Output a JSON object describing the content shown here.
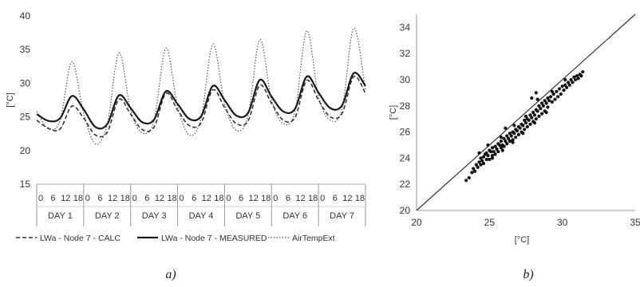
{
  "chart_data": [
    {
      "type": "line",
      "panel_caption": "a)",
      "ylabel": "[°C]",
      "ylim": [
        15,
        40
      ],
      "yticks": [
        15,
        20,
        25,
        30,
        35,
        40
      ],
      "grid": false,
      "legend_position": "bottom",
      "x_hours": [
        0,
        6,
        12,
        18,
        24,
        30,
        36,
        42,
        48,
        54,
        60,
        66,
        72,
        78,
        84,
        90,
        96,
        102,
        108,
        114,
        120,
        126,
        132,
        138,
        144,
        150,
        156,
        162,
        168
      ],
      "hour_tick_labels": [
        "0",
        "6",
        "12",
        "18"
      ],
      "day_labels": [
        "DAY 1",
        "DAY 2",
        "DAY 3",
        "DAY 4",
        "DAY 5",
        "DAY 6",
        "DAY 7"
      ],
      "series": [
        {
          "name": "LWa - Node 7 - CALC",
          "style": "dashed",
          "values": [
            24.5,
            23.3,
            23.2,
            26.6,
            24.8,
            22.3,
            22.7,
            27.6,
            25.4,
            23.1,
            23.5,
            28.5,
            26.0,
            23.7,
            24.1,
            29.0,
            26.4,
            24.0,
            24.4,
            29.7,
            27.0,
            24.5,
            24.9,
            30.4,
            27.5,
            25.0,
            25.5,
            31.0,
            28.5
          ]
        },
        {
          "name": "LWa - Node 7 - MEASURED",
          "style": "solid",
          "values": [
            25.4,
            24.4,
            24.8,
            28.1,
            26.1,
            23.5,
            23.9,
            28.2,
            26.3,
            24.2,
            24.6,
            28.8,
            26.9,
            24.7,
            25.1,
            29.6,
            27.5,
            25.2,
            25.6,
            30.5,
            28.0,
            25.8,
            26.2,
            31.0,
            28.6,
            26.3,
            26.7,
            31.5,
            29.6
          ]
        },
        {
          "name": "AirTempExt",
          "style": "dotted",
          "values": [
            25.8,
            23.2,
            24.5,
            33.2,
            25.5,
            21.0,
            23.8,
            34.5,
            26.0,
            22.6,
            24.5,
            35.2,
            26.5,
            22.3,
            24.8,
            35.8,
            27.0,
            23.0,
            25.2,
            36.5,
            27.5,
            24.0,
            25.8,
            37.8,
            28.0,
            24.5,
            26.2,
            38.2,
            29.0
          ]
        }
      ]
    },
    {
      "type": "scatter",
      "panel_caption": "b)",
      "xlabel": "[°C]",
      "ylabel": "[°C]",
      "xlim": [
        20,
        35
      ],
      "ylim": [
        20,
        35
      ],
      "xticks": [
        20,
        25,
        30,
        35
      ],
      "yticks": [
        20,
        22,
        24,
        26,
        28,
        30,
        32,
        34
      ],
      "grid": false,
      "diagonal_line": [
        [
          20,
          20
        ],
        [
          35,
          35
        ]
      ],
      "points": [
        [
          23.4,
          22.3
        ],
        [
          23.6,
          22.5
        ],
        [
          23.8,
          22.9
        ],
        [
          23.9,
          23.2
        ],
        [
          24.0,
          23.0
        ],
        [
          24.1,
          23.5
        ],
        [
          24.2,
          23.3
        ],
        [
          24.3,
          23.7
        ],
        [
          24.4,
          23.5
        ],
        [
          24.4,
          24.0
        ],
        [
          24.5,
          23.8
        ],
        [
          24.6,
          24.1
        ],
        [
          24.6,
          23.6
        ],
        [
          24.7,
          24.3
        ],
        [
          24.8,
          23.9
        ],
        [
          24.8,
          24.4
        ],
        [
          24.9,
          24.2
        ],
        [
          25.0,
          24.6
        ],
        [
          25.0,
          23.9
        ],
        [
          25.1,
          24.5
        ],
        [
          25.2,
          24.2
        ],
        [
          25.2,
          24.8
        ],
        [
          25.3,
          24.5
        ],
        [
          25.4,
          24.9
        ],
        [
          25.4,
          24.3
        ],
        [
          25.5,
          24.7
        ],
        [
          25.6,
          25.1
        ],
        [
          25.6,
          24.5
        ],
        [
          25.7,
          25.0
        ],
        [
          25.8,
          24.8
        ],
        [
          25.8,
          25.3
        ],
        [
          25.9,
          25.0
        ],
        [
          26.0,
          25.5
        ],
        [
          26.0,
          24.9
        ],
        [
          26.1,
          25.3
        ],
        [
          26.2,
          25.7
        ],
        [
          26.2,
          25.1
        ],
        [
          26.3,
          25.5
        ],
        [
          26.4,
          25.9
        ],
        [
          26.4,
          25.3
        ],
        [
          26.5,
          25.7
        ],
        [
          26.6,
          26.0
        ],
        [
          26.6,
          25.4
        ],
        [
          26.7,
          25.9
        ],
        [
          26.8,
          26.2
        ],
        [
          26.8,
          25.6
        ],
        [
          26.9,
          26.1
        ],
        [
          27.0,
          26.4
        ],
        [
          27.0,
          25.8
        ],
        [
          27.1,
          26.3
        ],
        [
          27.2,
          26.6
        ],
        [
          27.2,
          26.0
        ],
        [
          27.3,
          26.5
        ],
        [
          27.4,
          26.9
        ],
        [
          27.4,
          26.2
        ],
        [
          27.5,
          26.7
        ],
        [
          27.6,
          27.0
        ],
        [
          27.6,
          26.4
        ],
        [
          27.7,
          26.9
        ],
        [
          27.8,
          27.3
        ],
        [
          27.8,
          26.6
        ],
        [
          27.9,
          27.1
        ],
        [
          28.0,
          27.5
        ],
        [
          28.0,
          26.8
        ],
        [
          28.1,
          27.3
        ],
        [
          28.2,
          27.7
        ],
        [
          28.2,
          27.0
        ],
        [
          28.3,
          27.6
        ],
        [
          28.4,
          28.0
        ],
        [
          28.4,
          27.2
        ],
        [
          28.5,
          27.8
        ],
        [
          28.6,
          28.2
        ],
        [
          28.6,
          27.4
        ],
        [
          28.7,
          28.0
        ],
        [
          28.8,
          28.4
        ],
        [
          28.8,
          27.6
        ],
        [
          28.9,
          28.2
        ],
        [
          29.0,
          28.6
        ],
        [
          29.0,
          27.9
        ],
        [
          29.1,
          28.4
        ],
        [
          29.2,
          28.7
        ],
        [
          29.3,
          28.3
        ],
        [
          29.4,
          28.9
        ],
        [
          29.5,
          28.5
        ],
        [
          29.6,
          29.1
        ],
        [
          29.7,
          28.7
        ],
        [
          29.8,
          29.3
        ],
        [
          29.9,
          28.9
        ],
        [
          30.0,
          29.5
        ],
        [
          30.1,
          29.2
        ],
        [
          30.2,
          29.6
        ],
        [
          30.3,
          29.4
        ],
        [
          30.4,
          29.8
        ],
        [
          30.5,
          29.6
        ],
        [
          30.6,
          30.0
        ],
        [
          30.7,
          29.8
        ],
        [
          30.8,
          30.2
        ],
        [
          30.9,
          30.0
        ],
        [
          31.0,
          30.3
        ],
        [
          31.1,
          30.1
        ],
        [
          31.2,
          30.4
        ],
        [
          31.3,
          30.3
        ],
        [
          31.4,
          30.6
        ],
        [
          25.2,
          24.0
        ],
        [
          25.9,
          24.6
        ],
        [
          26.6,
          25.2
        ],
        [
          27.3,
          25.9
        ],
        [
          28.1,
          26.7
        ],
        [
          28.9,
          27.5
        ],
        [
          24.9,
          25.0
        ],
        [
          25.8,
          25.6
        ],
        [
          26.7,
          26.5
        ],
        [
          27.5,
          27.2
        ],
        [
          28.3,
          28.5
        ],
        [
          28.2,
          29.0
        ],
        [
          27.9,
          28.6
        ],
        [
          26.1,
          26.3
        ],
        [
          24.3,
          24.4
        ],
        [
          29.3,
          29.1
        ],
        [
          30.2,
          30.0
        ]
      ]
    }
  ]
}
